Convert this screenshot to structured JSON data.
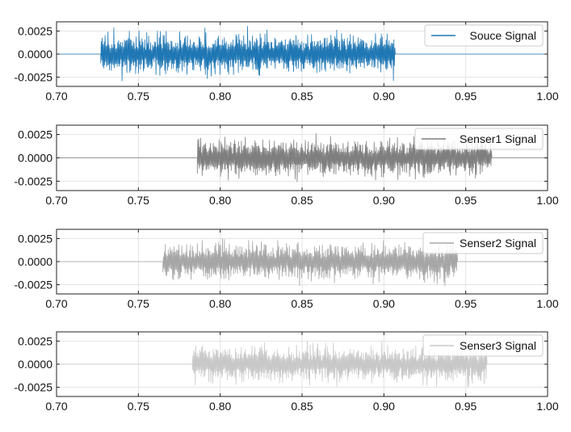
{
  "chart_data": [
    {
      "type": "line",
      "title": "",
      "xlabel": "",
      "ylabel": "",
      "xlim": [
        0.7,
        1.0
      ],
      "ylim": [
        -0.0035,
        0.0035
      ],
      "xticks": [
        0.7,
        0.75,
        0.8,
        0.85,
        0.9,
        0.95,
        1.0
      ],
      "xtick_labels": [
        "0.70",
        "0.75",
        "0.80",
        "0.85",
        "0.90",
        "0.95",
        "1.00"
      ],
      "yticks": [
        0.0025,
        0.0,
        -0.0025
      ],
      "ytick_labels": [
        "0.0025",
        "0.0000",
        "-0.0025"
      ],
      "grid": true,
      "legend": "top-right",
      "series": [
        {
          "name": "Souce Signal",
          "color": "#1f77b4",
          "burst_start": 0.727,
          "burst_end": 0.907,
          "amplitude": 0.0031
        }
      ]
    },
    {
      "type": "line",
      "title": "",
      "xlabel": "",
      "ylabel": "",
      "xlim": [
        0.7,
        1.0
      ],
      "ylim": [
        -0.0035,
        0.0035
      ],
      "xticks": [
        0.7,
        0.75,
        0.8,
        0.85,
        0.9,
        0.95,
        1.0
      ],
      "xtick_labels": [
        "0.70",
        "0.75",
        "0.80",
        "0.85",
        "0.90",
        "0.95",
        "1.00"
      ],
      "yticks": [
        0.0025,
        0.0,
        -0.0025
      ],
      "ytick_labels": [
        "0.0025",
        "0.0000",
        "-0.0025"
      ],
      "grid": true,
      "legend": "top-right",
      "series": [
        {
          "name": "Senser1 Signal",
          "color": "#7f7f7f",
          "burst_start": 0.786,
          "burst_end": 0.966,
          "amplitude": 0.0028
        }
      ]
    },
    {
      "type": "line",
      "title": "",
      "xlabel": "",
      "ylabel": "",
      "xlim": [
        0.7,
        1.0
      ],
      "ylim": [
        -0.0035,
        0.0035
      ],
      "xticks": [
        0.7,
        0.75,
        0.8,
        0.85,
        0.9,
        0.95,
        1.0
      ],
      "xtick_labels": [
        "0.70",
        "0.75",
        "0.80",
        "0.85",
        "0.90",
        "0.95",
        "1.00"
      ],
      "yticks": [
        0.0025,
        0.0,
        -0.0025
      ],
      "ytick_labels": [
        "0.0025",
        "0.0000",
        "-0.0025"
      ],
      "grid": true,
      "legend": "top-right",
      "series": [
        {
          "name": "Senser2 Signal",
          "color": "#a6a6a6",
          "burst_start": 0.765,
          "burst_end": 0.945,
          "amplitude": 0.0028
        }
      ]
    },
    {
      "type": "line",
      "title": "",
      "xlabel": "",
      "ylabel": "",
      "xlim": [
        0.7,
        1.0
      ],
      "ylim": [
        -0.0035,
        0.0035
      ],
      "xticks": [
        0.7,
        0.75,
        0.8,
        0.85,
        0.9,
        0.95,
        1.0
      ],
      "xtick_labels": [
        "0.70",
        "0.75",
        "0.80",
        "0.85",
        "0.90",
        "0.95",
        "1.00"
      ],
      "yticks": [
        0.0025,
        0.0,
        -0.0025
      ],
      "ytick_labels": [
        "0.0025",
        "0.0000",
        "-0.0025"
      ],
      "grid": true,
      "legend": "top-right",
      "series": [
        {
          "name": "Senser3 Signal",
          "color": "#c8c8c8",
          "burst_start": 0.783,
          "burst_end": 0.963,
          "amplitude": 0.0027
        }
      ]
    }
  ]
}
